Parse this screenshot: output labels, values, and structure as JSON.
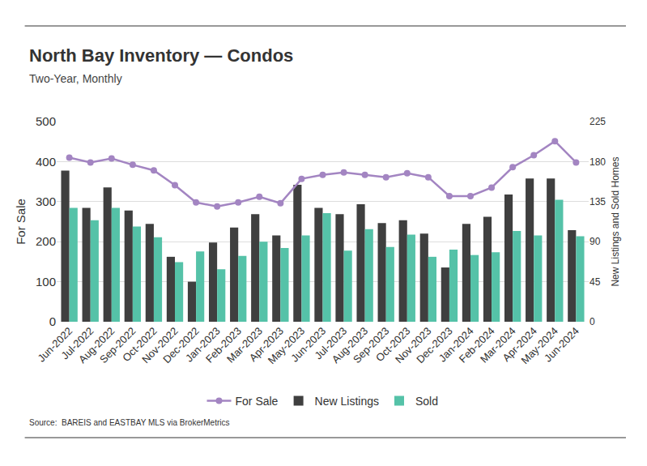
{
  "chart_data": {
    "type": "bar",
    "title": "North Bay Inventory — Condos",
    "subtitle": "Two-Year, Monthly",
    "source": "Source:  BAREIS and EASTBAY MLS via BrokerMetrics",
    "y_label": "For Sale",
    "y2_label": "New Listings and Sold Homes",
    "categories": [
      "Jun-2022",
      "Jul-2022",
      "Aug-2022",
      "Sep-2022",
      "Oct-2022",
      "Nov-2022",
      "Dec-2022",
      "Jan-2023",
      "Feb-2023",
      "Mar-2023",
      "Apr-2023",
      "May-2023",
      "Jun-2023",
      "Jul-2023",
      "Aug-2023",
      "Sep-2023",
      "Oct-2023",
      "Nov-2023",
      "Dec-2023",
      "Jan-2024",
      "Feb-2024",
      "Mar-2024",
      "Apr-2024",
      "May-2024",
      "Jun-2024"
    ],
    "series": [
      {
        "name": "For Sale",
        "type": "line",
        "marker": "circle",
        "color": "#a385c2",
        "values": [
          410,
          398,
          408,
          392,
          378,
          341,
          298,
          288,
          298,
          312,
          296,
          357,
          367,
          373,
          367,
          361,
          371,
          361,
          314,
          314,
          335,
          386,
          416,
          451,
          398
        ]
      },
      {
        "name": "New Listings",
        "type": "bar",
        "axis": "y2",
        "color": "#3f3f3f",
        "values": [
          170,
          128,
          151,
          125,
          110,
          73,
          45,
          89,
          106,
          121,
          97,
          154,
          128,
          121,
          132,
          111,
          114,
          99,
          61,
          110,
          118,
          143,
          161,
          161,
          103
        ]
      },
      {
        "name": "Sold",
        "type": "bar",
        "axis": "y2",
        "color": "#55c2a8",
        "values": [
          128,
          114,
          128,
          107,
          95,
          67,
          79,
          59,
          74,
          90,
          83,
          97,
          122,
          80,
          104,
          84,
          98,
          73,
          81,
          75,
          78,
          102,
          97,
          137,
          96
        ]
      }
    ],
    "ylim": [
      0,
      500
    ],
    "yticks": [
      0,
      100,
      200,
      300,
      400,
      500
    ],
    "y2lim": [
      0,
      225
    ],
    "y2ticks": [
      0,
      45,
      90,
      135,
      180,
      225
    ],
    "grid": true,
    "legend": "bottom"
  }
}
